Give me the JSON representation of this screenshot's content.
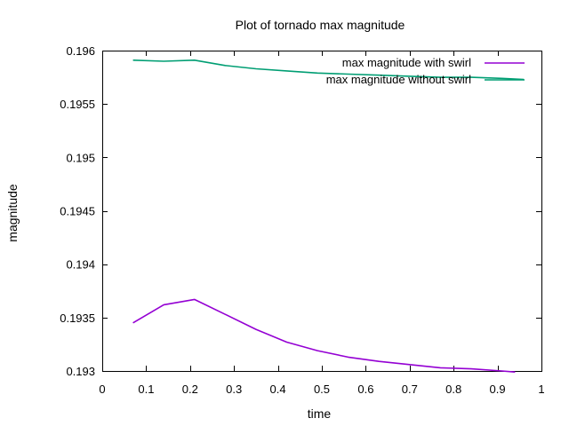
{
  "chart_data": {
    "type": "line",
    "title": "Plot of tornado max magnitude",
    "xlabel": "time",
    "ylabel": "magnitude",
    "xlim": [
      0,
      1
    ],
    "ylim": [
      0.193,
      0.196
    ],
    "x_ticks": [
      "0",
      "0.1",
      "0.2",
      "0.3",
      "0.4",
      "0.5",
      "0.6",
      "0.7",
      "0.8",
      "0.9",
      "1"
    ],
    "y_ticks": [
      "0.193",
      "0.1935",
      "0.194",
      "0.1945",
      "0.195",
      "0.1955",
      "0.196"
    ],
    "legend_position": "top-right",
    "grid": false,
    "series": [
      {
        "name": "max magnitude with swirl",
        "color": "#9400d3",
        "x": [
          0.07,
          0.14,
          0.21,
          0.28,
          0.35,
          0.42,
          0.49,
          0.56,
          0.63,
          0.7,
          0.77,
          0.84,
          0.91,
          0.94
        ],
        "y": [
          0.19345,
          0.19362,
          0.19367,
          0.19353,
          0.19339,
          0.19327,
          0.19319,
          0.19313,
          0.19309,
          0.19306,
          0.19303,
          0.19302,
          0.193,
          0.19299
        ]
      },
      {
        "name": "max magnitude without swirl",
        "color": "#009e73",
        "x": [
          0.07,
          0.14,
          0.21,
          0.28,
          0.35,
          0.42,
          0.49,
          0.56,
          0.63,
          0.7,
          0.77,
          0.84,
          0.91,
          0.96
        ],
        "y": [
          0.19591,
          0.1959,
          0.19591,
          0.19586,
          0.19583,
          0.19581,
          0.19579,
          0.19578,
          0.19577,
          0.19576,
          0.19575,
          0.19575,
          0.19574,
          0.19573
        ]
      }
    ]
  }
}
